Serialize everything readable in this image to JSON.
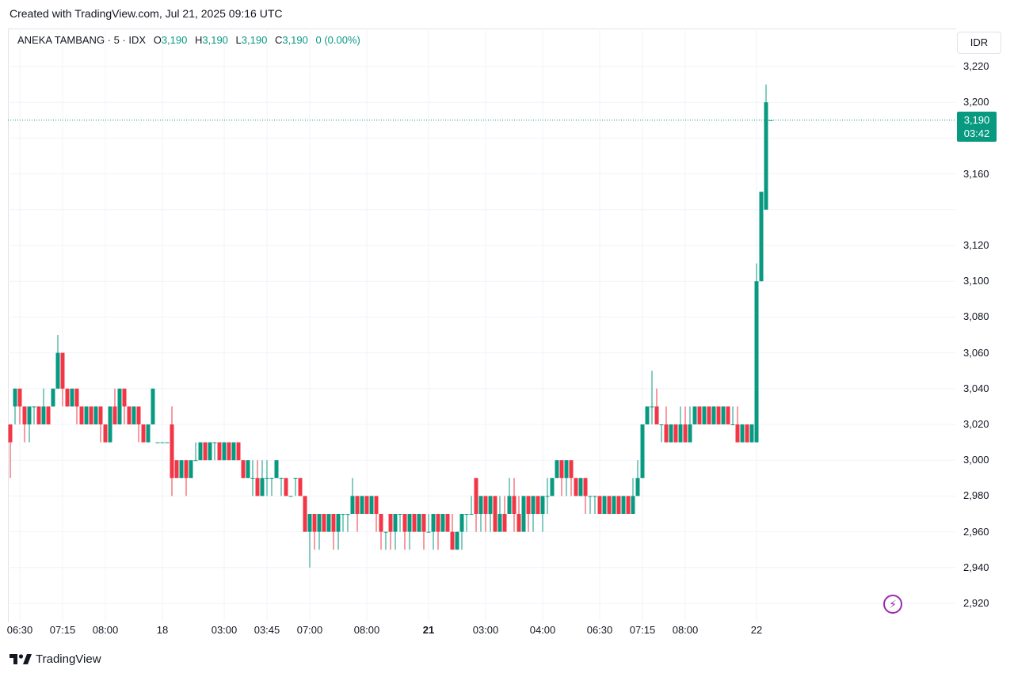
{
  "header": {
    "created_text": "Created with TradingView.com, Jul 21, 2025 09:16 UTC"
  },
  "legend": {
    "symbol": "ANEKA TAMBANG · 5 · IDX",
    "open_label": "O",
    "open": "3,190",
    "high_label": "H",
    "high": "3,190",
    "low_label": "L",
    "low": "3,190",
    "close_label": "C",
    "close": "3,190",
    "change": "0 (0.00%)"
  },
  "currency": "IDR",
  "last_price": {
    "price": "3,190",
    "countdown": "03:42"
  },
  "footer": {
    "brand": "TradingView"
  },
  "colors": {
    "up": "#089981",
    "down": "#F23645",
    "grid": "#f0f3fa",
    "accent": "#9c27b0"
  },
  "chart_data": {
    "type": "candlestick",
    "title": "ANEKA TAMBANG · 5 · IDX",
    "y_axis": {
      "min": 2910,
      "max": 3230,
      "ticks": [
        2920,
        2940,
        2960,
        2980,
        3000,
        3020,
        3040,
        3060,
        3080,
        3100,
        3120,
        3140,
        3160,
        3180,
        3200,
        3220
      ],
      "labels": [
        "2,920",
        "2,940",
        "2,960",
        "2,980",
        "3,000",
        "3,020",
        "3,040",
        "3,060",
        "3,080",
        "3,100",
        "3,120",
        "",
        "3,160",
        "",
        "3,200",
        "3,220"
      ]
    },
    "x_axis": {
      "labels": [
        {
          "text": "06:30",
          "bar": 2
        },
        {
          "text": "07:15",
          "bar": 11
        },
        {
          "text": "08:00",
          "bar": 20
        },
        {
          "text": "18",
          "bar": 32,
          "bold": false
        },
        {
          "text": "03:00",
          "bar": 45
        },
        {
          "text": "03:45",
          "bar": 54
        },
        {
          "text": "07:00",
          "bar": 63
        },
        {
          "text": "08:00",
          "bar": 75
        },
        {
          "text": "21",
          "bar": 88,
          "bold": true
        },
        {
          "text": "03:00",
          "bar": 100
        },
        {
          "text": "04:00",
          "bar": 112
        },
        {
          "text": "06:30",
          "bar": 124
        },
        {
          "text": "07:15",
          "bar": 133
        },
        {
          "text": "08:00",
          "bar": 142
        },
        {
          "text": "22",
          "bar": 157
        }
      ]
    },
    "last_price": 3190,
    "candles": [
      [
        3020,
        3020,
        2990,
        3010
      ],
      [
        3030,
        3040,
        3020,
        3040
      ],
      [
        3040,
        3040,
        3020,
        3030
      ],
      [
        3030,
        3030,
        3010,
        3020
      ],
      [
        3020,
        3030,
        3010,
        3030
      ],
      [
        3030,
        3030,
        3020,
        3030
      ],
      [
        3030,
        3030,
        3020,
        3020
      ],
      [
        3020,
        3040,
        3020,
        3030
      ],
      [
        3030,
        3030,
        3020,
        3020
      ],
      [
        3030,
        3040,
        3030,
        3040
      ],
      [
        3040,
        3070,
        3040,
        3060
      ],
      [
        3060,
        3060,
        3030,
        3040
      ],
      [
        3040,
        3040,
        3030,
        3030
      ],
      [
        3030,
        3040,
        3030,
        3040
      ],
      [
        3040,
        3040,
        3020,
        3030
      ],
      [
        3030,
        3030,
        3020,
        3020
      ],
      [
        3020,
        3030,
        3020,
        3030
      ],
      [
        3030,
        3030,
        3020,
        3020
      ],
      [
        3020,
        3030,
        3020,
        3030
      ],
      [
        3030,
        3030,
        3010,
        3020
      ],
      [
        3020,
        3020,
        3010,
        3010
      ],
      [
        3010,
        3030,
        3010,
        3030
      ],
      [
        3030,
        3040,
        3020,
        3020
      ],
      [
        3020,
        3040,
        3020,
        3040
      ],
      [
        3040,
        3040,
        3020,
        3030
      ],
      [
        3030,
        3030,
        3020,
        3020
      ],
      [
        3020,
        3030,
        3020,
        3030
      ],
      [
        3030,
        3030,
        3010,
        3020
      ],
      [
        3020,
        3020,
        3010,
        3010
      ],
      [
        3010,
        3020,
        3010,
        3020
      ],
      [
        3020,
        3040,
        3020,
        3040
      ],
      [
        3010,
        3010,
        3010,
        3010
      ],
      [
        3010,
        3010,
        3010,
        3010
      ],
      [
        3010,
        3010,
        3010,
        3010
      ],
      [
        3020,
        3030,
        2980,
        2990
      ],
      [
        3000,
        3000,
        2990,
        2990
      ],
      [
        2990,
        3000,
        2990,
        3000
      ],
      [
        3000,
        3000,
        2980,
        2990
      ],
      [
        2990,
        3000,
        2990,
        3000
      ],
      [
        3000,
        3010,
        3000,
        3000
      ],
      [
        3000,
        3010,
        3000,
        3010
      ],
      [
        3010,
        3010,
        3000,
        3000
      ],
      [
        3000,
        3010,
        3000,
        3010
      ],
      [
        3010,
        3010,
        3000,
        3010
      ],
      [
        3010,
        3010,
        3000,
        3000
      ],
      [
        3000,
        3010,
        3000,
        3010
      ],
      [
        3010,
        3010,
        3000,
        3000
      ],
      [
        3000,
        3010,
        3000,
        3010
      ],
      [
        3010,
        3010,
        3000,
        3000
      ],
      [
        3000,
        3000,
        2990,
        2990
      ],
      [
        2990,
        3000,
        2990,
        3000
      ],
      [
        2990,
        3000,
        2980,
        2990
      ],
      [
        2990,
        3000,
        2980,
        2980
      ],
      [
        2980,
        3000,
        2980,
        2990
      ],
      [
        2990,
        3000,
        2980,
        2990
      ],
      [
        2990,
        2990,
        2980,
        2990
      ],
      [
        2990,
        3000,
        2990,
        3000
      ],
      [
        2990,
        2990,
        2980,
        2990
      ],
      [
        2990,
        2990,
        2980,
        2980
      ],
      [
        2980,
        2980,
        2980,
        2980
      ],
      [
        2990,
        2990,
        2980,
        2990
      ],
      [
        2990,
        2990,
        2980,
        2980
      ],
      [
        2980,
        2980,
        2960,
        2960
      ],
      [
        2960,
        2970,
        2940,
        2970
      ],
      [
        2970,
        2970,
        2950,
        2960
      ],
      [
        2960,
        2970,
        2950,
        2970
      ],
      [
        2970,
        2970,
        2960,
        2960
      ],
      [
        2960,
        2970,
        2960,
        2970
      ],
      [
        2970,
        2970,
        2950,
        2960
      ],
      [
        2960,
        2970,
        2950,
        2970
      ],
      [
        2970,
        2970,
        2960,
        2970
      ],
      [
        2970,
        2970,
        2960,
        2970
      ],
      [
        2970,
        2990,
        2970,
        2980
      ],
      [
        2980,
        2980,
        2960,
        2970
      ],
      [
        2970,
        2980,
        2970,
        2980
      ],
      [
        2980,
        2980,
        2970,
        2970
      ],
      [
        2970,
        2980,
        2970,
        2980
      ],
      [
        2980,
        2980,
        2960,
        2970
      ],
      [
        2970,
        2970,
        2950,
        2960
      ],
      [
        2960,
        2960,
        2950,
        2960
      ],
      [
        2970,
        2970,
        2950,
        2960
      ],
      [
        2960,
        2970,
        2950,
        2970
      ],
      [
        2970,
        2970,
        2960,
        2970
      ],
      [
        2970,
        2970,
        2950,
        2960
      ],
      [
        2960,
        2970,
        2950,
        2970
      ],
      [
        2970,
        2970,
        2960,
        2960
      ],
      [
        2960,
        2970,
        2960,
        2970
      ],
      [
        2970,
        2970,
        2950,
        2960
      ],
      [
        2960,
        2970,
        2960,
        2960
      ],
      [
        2960,
        2970,
        2950,
        2970
      ],
      [
        2970,
        2970,
        2950,
        2960
      ],
      [
        2960,
        2970,
        2960,
        2970
      ],
      [
        2970,
        2970,
        2960,
        2960
      ],
      [
        2960,
        2970,
        2950,
        2950
      ],
      [
        2950,
        2960,
        2950,
        2960
      ],
      [
        2960,
        2970,
        2950,
        2970
      ],
      [
        2970,
        2970,
        2960,
        2970
      ],
      [
        2970,
        2980,
        2970,
        2970
      ],
      [
        2990,
        2990,
        2960,
        2970
      ],
      [
        2970,
        2980,
        2960,
        2980
      ],
      [
        2980,
        2980,
        2960,
        2970
      ],
      [
        2970,
        2980,
        2960,
        2980
      ],
      [
        2980,
        2980,
        2960,
        2960
      ],
      [
        2960,
        2980,
        2960,
        2970
      ],
      [
        2970,
        2980,
        2960,
        2960
      ],
      [
        2970,
        2990,
        2970,
        2980
      ],
      [
        2980,
        2990,
        2960,
        2970
      ],
      [
        2970,
        2980,
        2960,
        2960
      ],
      [
        2960,
        2980,
        2960,
        2980
      ],
      [
        2980,
        2980,
        2960,
        2970
      ],
      [
        2970,
        2980,
        2960,
        2980
      ],
      [
        2980,
        2980,
        2970,
        2970
      ],
      [
        2970,
        2980,
        2960,
        2980
      ],
      [
        2980,
        2990,
        2970,
        2980
      ],
      [
        2980,
        2990,
        2980,
        2990
      ],
      [
        2990,
        3000,
        2990,
        3000
      ],
      [
        3000,
        3000,
        2980,
        2990
      ],
      [
        2990,
        3000,
        2980,
        3000
      ],
      [
        3000,
        3000,
        2980,
        2990
      ],
      [
        2990,
        2990,
        2980,
        2980
      ],
      [
        2980,
        2990,
        2980,
        2990
      ],
      [
        2990,
        2990,
        2970,
        2980
      ],
      [
        2980,
        2980,
        2970,
        2980
      ],
      [
        2980,
        2980,
        2970,
        2980
      ],
      [
        2980,
        2980,
        2970,
        2970
      ],
      [
        2970,
        2980,
        2970,
        2980
      ],
      [
        2980,
        2980,
        2970,
        2970
      ],
      [
        2970,
        2980,
        2970,
        2980
      ],
      [
        2980,
        2980,
        2970,
        2970
      ],
      [
        2970,
        2980,
        2970,
        2980
      ],
      [
        2980,
        2980,
        2970,
        2970
      ],
      [
        2970,
        2990,
        2970,
        2980
      ],
      [
        2980,
        3000,
        2980,
        2990
      ],
      [
        2990,
        3020,
        2990,
        3020
      ],
      [
        3020,
        3030,
        3020,
        3030
      ],
      [
        3030,
        3050,
        3020,
        3030
      ],
      [
        3030,
        3040,
        3020,
        3020
      ],
      [
        3020,
        3020,
        3010,
        3020
      ],
      [
        3020,
        3030,
        3010,
        3010
      ],
      [
        3010,
        3020,
        3010,
        3020
      ],
      [
        3020,
        3020,
        3010,
        3010
      ],
      [
        3010,
        3030,
        3010,
        3020
      ],
      [
        3020,
        3030,
        3010,
        3010
      ],
      [
        3010,
        3030,
        3010,
        3020
      ],
      [
        3020,
        3030,
        3020,
        3030
      ],
      [
        3030,
        3030,
        3020,
        3020
      ],
      [
        3020,
        3030,
        3020,
        3030
      ],
      [
        3030,
        3030,
        3020,
        3020
      ],
      [
        3020,
        3030,
        3020,
        3030
      ],
      [
        3030,
        3030,
        3020,
        3020
      ],
      [
        3020,
        3030,
        3020,
        3030
      ],
      [
        3030,
        3030,
        3020,
        3020
      ],
      [
        3020,
        3030,
        3020,
        3020
      ],
      [
        3020,
        3030,
        3010,
        3010
      ],
      [
        3010,
        3020,
        3010,
        3020
      ],
      [
        3020,
        3020,
        3010,
        3010
      ],
      [
        3010,
        3020,
        3010,
        3020
      ],
      [
        3010,
        3110,
        3010,
        3100
      ],
      [
        3100,
        3150,
        3100,
        3150
      ],
      [
        3140,
        3210,
        3140,
        3200
      ],
      [
        3190,
        3190,
        3190,
        3190
      ]
    ]
  }
}
